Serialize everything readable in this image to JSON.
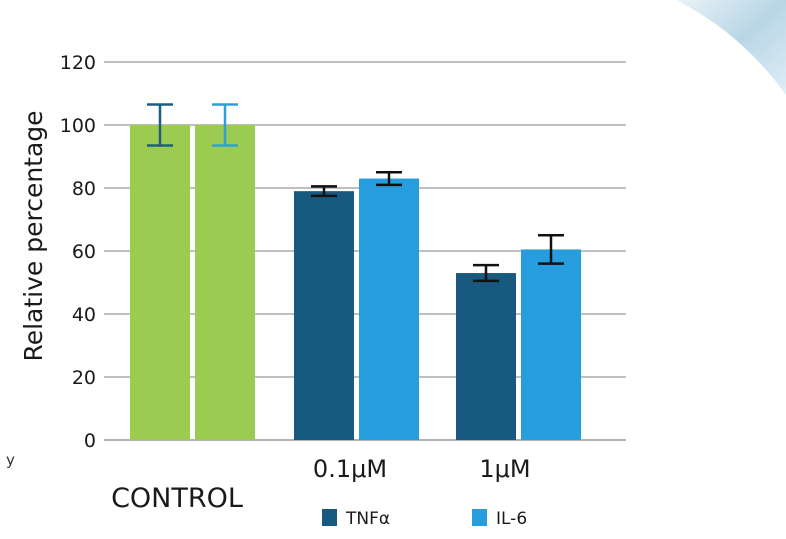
{
  "page": {
    "edge_text": "y"
  },
  "chart_data": {
    "type": "bar",
    "ylabel": "Relative percentage",
    "ylim": [
      0,
      120
    ],
    "yticks": [
      0,
      20,
      40,
      60,
      80,
      100,
      120
    ],
    "grid": true,
    "legend_placement": "bottom",
    "groups": [
      {
        "label": "CONTROL",
        "bars": [
          {
            "value": 100,
            "err": 6.5,
            "color": "#9BCB50",
            "err_color": "#1E5F80"
          },
          {
            "value": 100,
            "err": 6.5,
            "color": "#9BCB50",
            "err_color": "#2E9FDA"
          }
        ]
      },
      {
        "label": "0.1μM",
        "bars": [
          {
            "series": "TNFα",
            "value": 79,
            "err": 1.5,
            "color": "#18597F",
            "err_color": "#111111"
          },
          {
            "series": "IL-6",
            "value": 83,
            "err": 2,
            "color": "#269DDC",
            "err_color": "#111111"
          }
        ]
      },
      {
        "label": "1μM",
        "bars": [
          {
            "series": "TNFα",
            "value": 53,
            "err": 2.5,
            "color": "#18597F",
            "err_color": "#111111"
          },
          {
            "series": "IL-6",
            "value": 60.5,
            "err": 4.5,
            "color": "#269DDC",
            "err_color": "#111111"
          }
        ]
      }
    ],
    "legend": [
      {
        "name": "TNFα",
        "color": "#18597F"
      },
      {
        "name": "IL-6",
        "color": "#269DDC"
      }
    ],
    "colors": {
      "grid": "#9a9a9a",
      "axis_text": "#1a1a1a"
    }
  }
}
